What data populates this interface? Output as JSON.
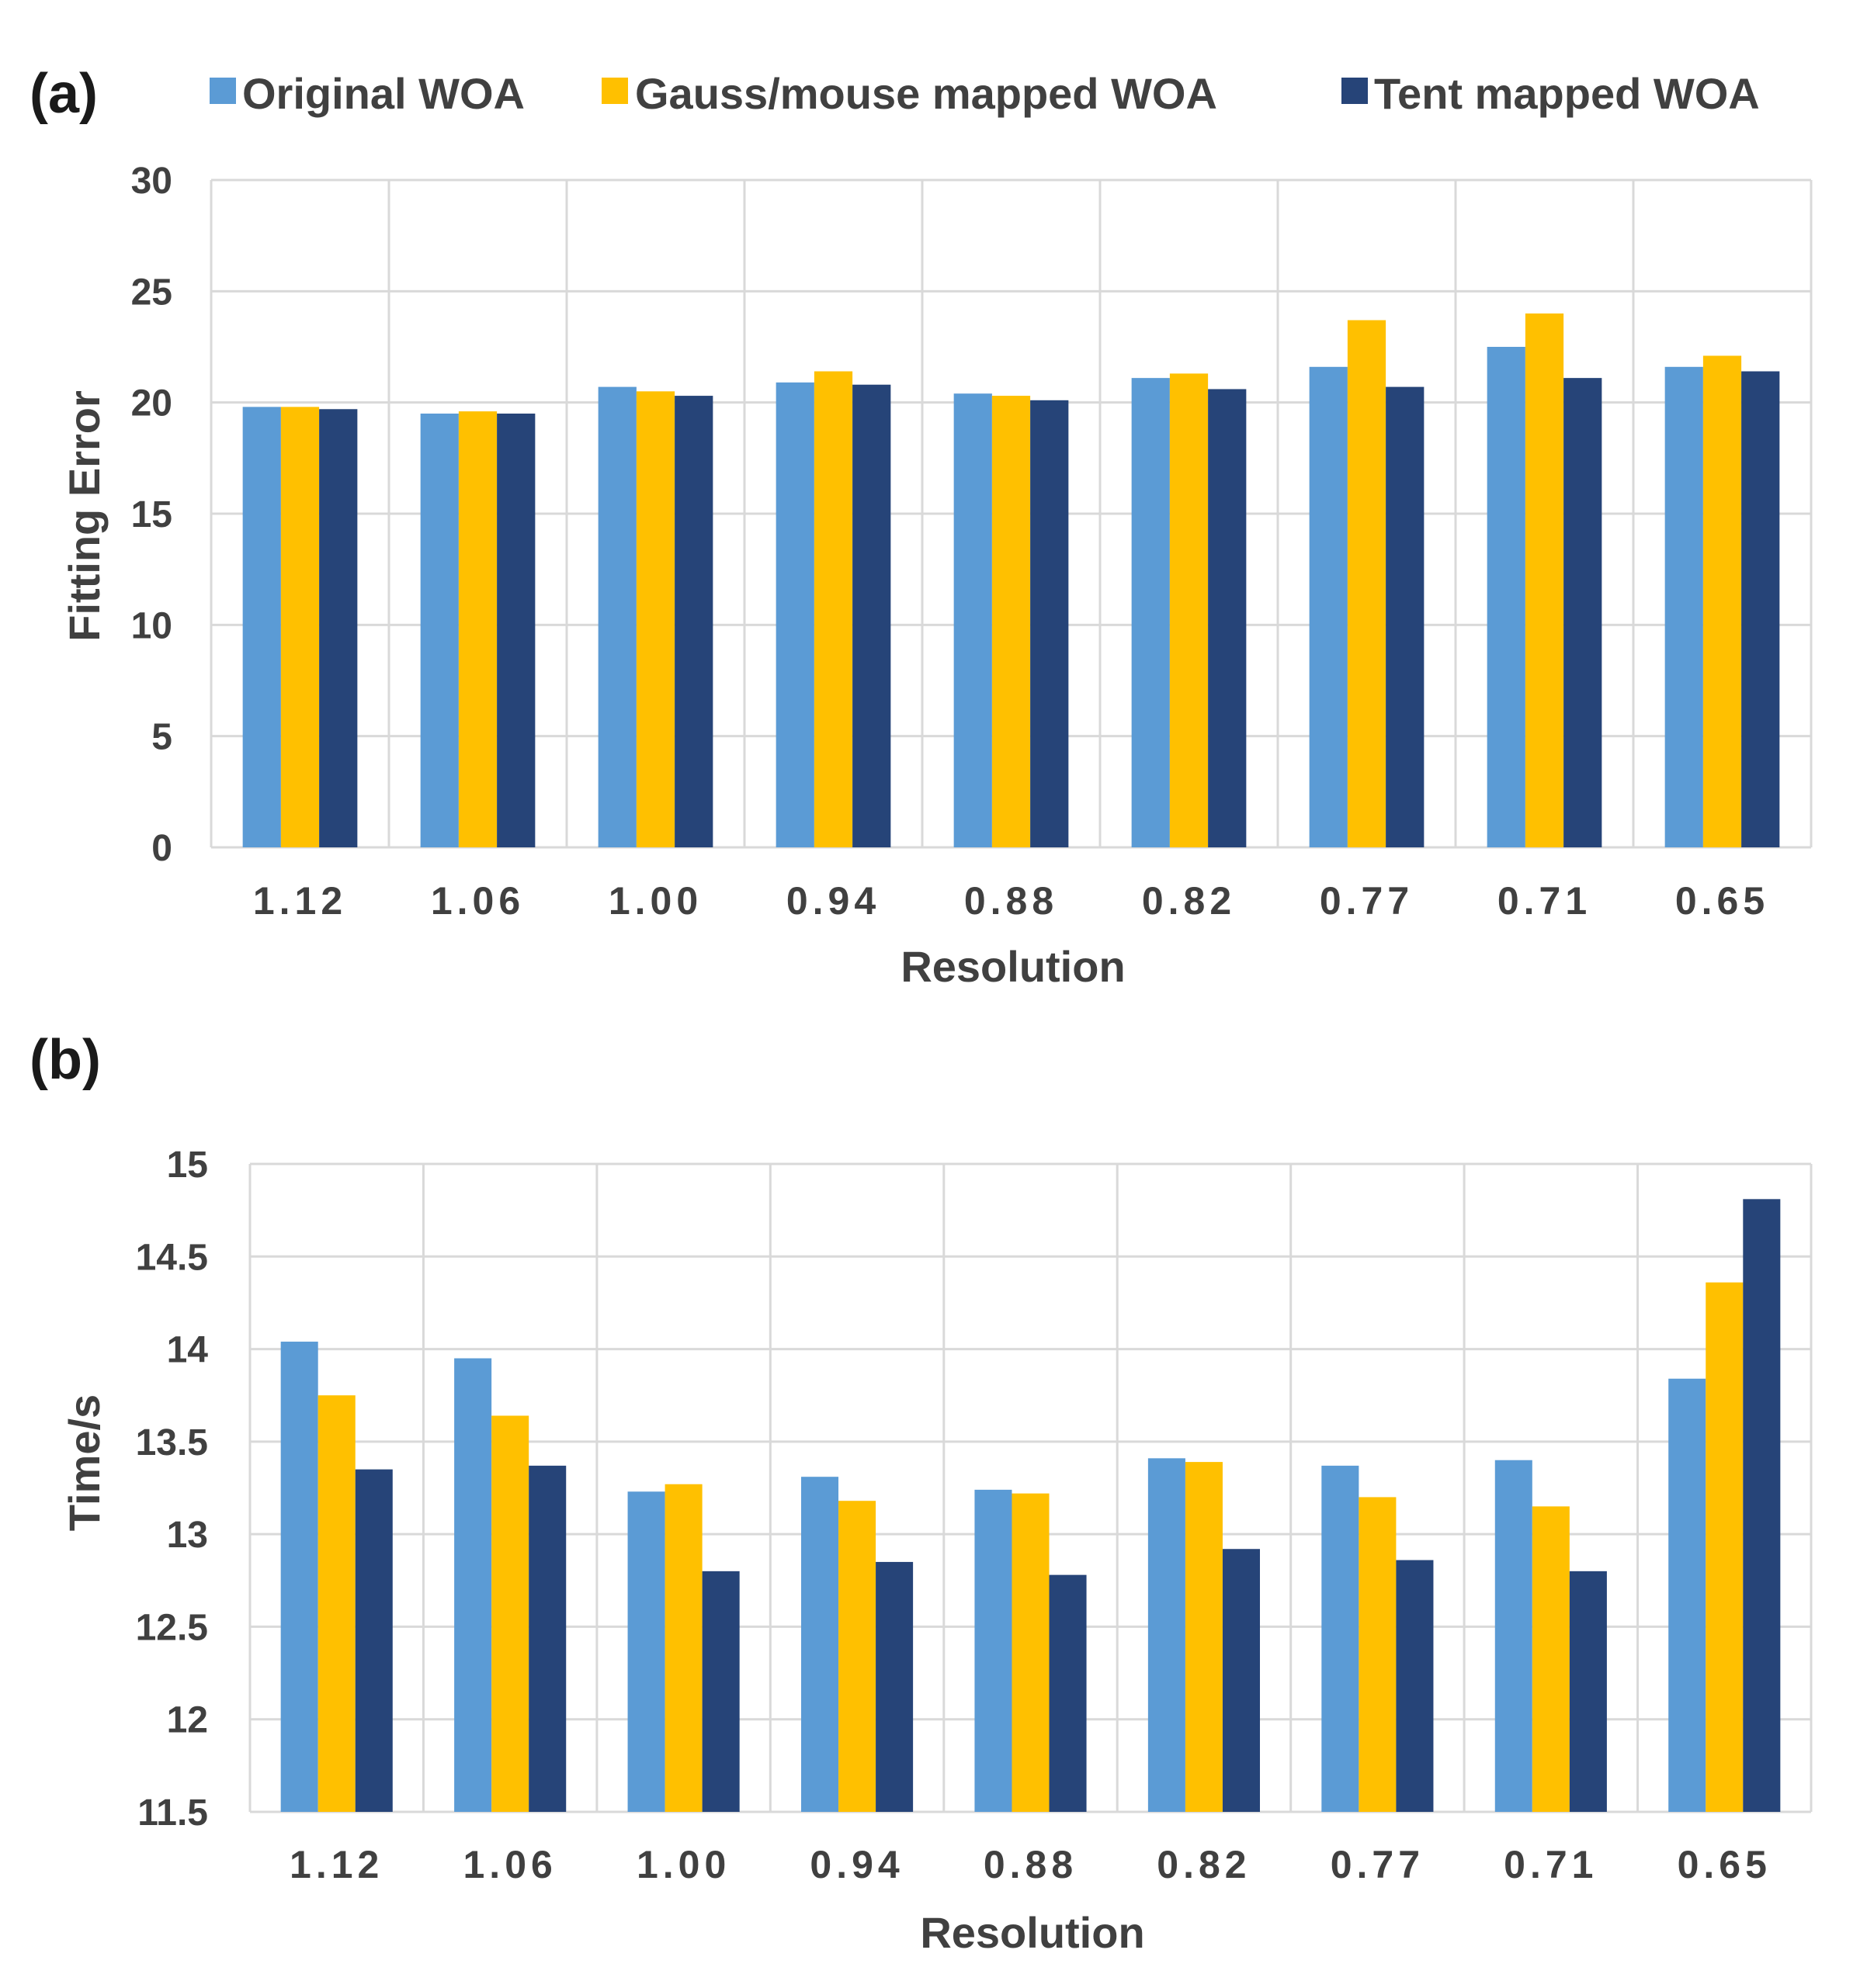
{
  "legend": [
    {
      "name": "Original WOA",
      "color": "#5b9bd5"
    },
    {
      "name": "Gauss/mouse mapped WOA",
      "color": "#ffc000"
    },
    {
      "name": "Tent mapped WOA",
      "color": "#264478"
    }
  ],
  "chart_data": [
    {
      "panel_label": "(a)",
      "type": "bar",
      "categories": [
        "1.12",
        "1.06",
        "1.00",
        "0.94",
        "0.88",
        "0.82",
        "0.77",
        "0.71",
        "0.65"
      ],
      "series": [
        {
          "name": "Original WOA",
          "values": [
            19.8,
            19.5,
            20.7,
            20.9,
            20.4,
            21.1,
            21.6,
            22.5,
            21.6
          ]
        },
        {
          "name": "Gauss/mouse mapped WOA",
          "values": [
            19.8,
            19.6,
            20.5,
            21.4,
            20.3,
            21.3,
            23.7,
            24.0,
            22.1
          ]
        },
        {
          "name": "Tent mapped WOA",
          "values": [
            19.7,
            19.5,
            20.3,
            20.8,
            20.1,
            20.6,
            20.7,
            21.1,
            21.4
          ]
        }
      ],
      "xlabel": "Resolution",
      "ylabel": "Fitting Error",
      "ylim": [
        0,
        30
      ],
      "yticks": [
        "0",
        "5",
        "10",
        "15",
        "20",
        "25",
        "30"
      ],
      "grid": true
    },
    {
      "panel_label": "(b)",
      "type": "bar",
      "categories": [
        "1.12",
        "1.06",
        "1.00",
        "0.94",
        "0.88",
        "0.82",
        "0.77",
        "0.71",
        "0.65"
      ],
      "series": [
        {
          "name": "Original WOA",
          "values": [
            14.04,
            13.95,
            13.23,
            13.31,
            13.24,
            13.41,
            13.37,
            13.4,
            13.84
          ]
        },
        {
          "name": "Gauss/mouse mapped WOA",
          "values": [
            13.75,
            13.64,
            13.27,
            13.18,
            13.22,
            13.39,
            13.2,
            13.15,
            14.36
          ]
        },
        {
          "name": "Tent mapped WOA",
          "values": [
            13.35,
            13.37,
            12.8,
            12.85,
            12.78,
            12.92,
            12.86,
            12.8,
            14.81
          ]
        }
      ],
      "xlabel": "Resolution",
      "ylabel": "Time/s",
      "ylim": [
        11.5,
        15
      ],
      "yticks": [
        "11.5",
        "12",
        "12.5",
        "13",
        "13.5",
        "14",
        "14.5",
        "15"
      ],
      "grid": true
    }
  ]
}
